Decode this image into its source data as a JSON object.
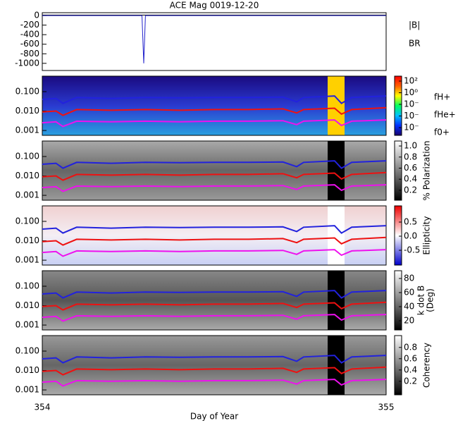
{
  "chart_data": [
    {
      "type": "line",
      "title": "ACE Mag 0019-12-20",
      "xlim": [
        354,
        355
      ],
      "ylim": [
        -1150,
        60
      ],
      "yticks": [
        0,
        -200,
        -400,
        -600,
        -800,
        -1000
      ],
      "x": [
        354,
        354.29,
        354.295,
        354.3,
        355
      ],
      "series": [
        {
          "name": "|B|",
          "color": "#000000",
          "values": [
            10,
            10,
            10,
            10,
            10
          ]
        },
        {
          "name": "BR",
          "color": "#2222cc",
          "values": [
            0,
            0,
            -1000,
            0,
            0
          ]
        }
      ]
    },
    {
      "type": "spectrogram",
      "log_y": true,
      "xlim": [
        354,
        355
      ],
      "ylim": [
        0.00056,
        0.63
      ],
      "yticks": [
        {
          "value": 0.1,
          "label": "0.100"
        },
        {
          "value": 0.01,
          "label": "0.010"
        },
        {
          "value": 0.001,
          "label": "0.001"
        }
      ],
      "background": [
        "#1a0a80",
        "#2a3ad0",
        "#2aa0e0"
      ],
      "colorbar": {
        "lim": [
          -7.33,
          2.85
        ],
        "ticks": [
          {
            "value": 2,
            "label": "10²"
          },
          {
            "value": 0,
            "label": "10⁰"
          },
          {
            "value": -2,
            "label": "10⁻"
          },
          {
            "value": -4,
            "label": "10⁻"
          },
          {
            "value": -6,
            "label": "10⁻"
          }
        ],
        "colors": [
          "#1a006a",
          "#0030ff",
          "#00c0ff",
          "#00ff60",
          "#ffff00",
          "#ff6000",
          "#ff0000"
        ]
      },
      "x": [
        354,
        354.04,
        354.06,
        354.1,
        354.2,
        354.3,
        354.4,
        354.5,
        354.6,
        354.7,
        354.74,
        354.76,
        354.85,
        354.87,
        354.9,
        355
      ],
      "series": [
        {
          "name": "fH+",
          "color": "#2222dd",
          "values": [
            0.04,
            0.045,
            0.025,
            0.05,
            0.045,
            0.05,
            0.048,
            0.05,
            0.05,
            0.052,
            0.03,
            0.05,
            0.06,
            0.025,
            0.05,
            0.06
          ]
        },
        {
          "name": "fHe+",
          "color": "#ee1111",
          "values": [
            0.009,
            0.01,
            0.006,
            0.012,
            0.011,
            0.012,
            0.011,
            0.012,
            0.012,
            0.013,
            0.008,
            0.012,
            0.014,
            0.007,
            0.012,
            0.015
          ]
        },
        {
          "name": "f0+",
          "color": "#ee11ee",
          "values": [
            0.0025,
            0.0028,
            0.0016,
            0.003,
            0.0028,
            0.003,
            0.0028,
            0.003,
            0.003,
            0.0032,
            0.002,
            0.003,
            0.0035,
            0.0018,
            0.003,
            0.0035
          ]
        }
      ]
    },
    {
      "type": "spectrogram",
      "log_y": true,
      "xlim": [
        354,
        355
      ],
      "ylim": [
        0.00056,
        0.63
      ],
      "yticks": [
        {
          "value": 0.1,
          "label": "0.100"
        },
        {
          "value": 0.01,
          "label": "0.010"
        },
        {
          "value": 0.001,
          "label": "0.001"
        }
      ],
      "background": [
        "#aaaaaa",
        "#666666",
        "#999999"
      ],
      "colorbar": {
        "label": "% Polarization",
        "lim": [
          0.02,
          1.09
        ],
        "ticks": [
          0.2,
          0.4,
          0.6,
          0.8,
          {
            "value": 1,
            "label": "1.0"
          }
        ],
        "colors": [
          "#000000",
          "#ffffff"
        ]
      },
      "x": [
        354,
        354.04,
        354.06,
        354.1,
        354.2,
        354.3,
        354.4,
        354.5,
        354.6,
        354.7,
        354.74,
        354.76,
        354.85,
        354.87,
        354.9,
        355
      ],
      "series": [
        {
          "color": "#2222dd",
          "values": [
            0.04,
            0.045,
            0.025,
            0.05,
            0.045,
            0.05,
            0.048,
            0.05,
            0.05,
            0.052,
            0.03,
            0.05,
            0.06,
            0.025,
            0.05,
            0.06
          ]
        },
        {
          "color": "#ee1111",
          "values": [
            0.009,
            0.01,
            0.006,
            0.012,
            0.011,
            0.012,
            0.011,
            0.012,
            0.012,
            0.013,
            0.008,
            0.012,
            0.014,
            0.007,
            0.012,
            0.015
          ]
        },
        {
          "color": "#ee11ee",
          "values": [
            0.0025,
            0.0028,
            0.0016,
            0.003,
            0.0028,
            0.003,
            0.0028,
            0.003,
            0.003,
            0.0032,
            0.002,
            0.003,
            0.0035,
            0.0018,
            0.003,
            0.0035
          ]
        }
      ]
    },
    {
      "type": "spectrogram",
      "log_y": true,
      "xlim": [
        354,
        355
      ],
      "ylim": [
        0.00056,
        0.63
      ],
      "yticks": [
        {
          "value": 0.1,
          "label": "0.100"
        },
        {
          "value": 0.01,
          "label": "0.010"
        },
        {
          "value": 0.001,
          "label": "0.001"
        }
      ],
      "background": [
        "#f0d0d0",
        "#f4eef4",
        "#c8d0f4"
      ],
      "colorbar": {
        "label": "Ellipticity",
        "lim": [
          -1.025,
          1.075
        ],
        "ticks": [
          {
            "value": -0.5,
            "label": "-0.5"
          },
          {
            "value": 0,
            "label": "0.0"
          },
          0.5
        ],
        "colors": [
          "#0000cc",
          "#ffffff",
          "#ee0000"
        ]
      },
      "x": [
        354,
        354.04,
        354.06,
        354.1,
        354.2,
        354.3,
        354.4,
        354.5,
        354.6,
        354.7,
        354.74,
        354.76,
        354.85,
        354.87,
        354.9,
        355
      ],
      "series": [
        {
          "color": "#2222dd",
          "values": [
            0.04,
            0.045,
            0.025,
            0.05,
            0.045,
            0.05,
            0.048,
            0.05,
            0.05,
            0.052,
            0.03,
            0.05,
            0.06,
            0.025,
            0.05,
            0.06
          ]
        },
        {
          "color": "#ee1111",
          "values": [
            0.009,
            0.01,
            0.006,
            0.012,
            0.011,
            0.012,
            0.011,
            0.012,
            0.012,
            0.013,
            0.008,
            0.012,
            0.014,
            0.007,
            0.012,
            0.015
          ]
        },
        {
          "color": "#ee11ee",
          "values": [
            0.0025,
            0.0028,
            0.0016,
            0.003,
            0.0028,
            0.003,
            0.0028,
            0.003,
            0.003,
            0.0032,
            0.002,
            0.003,
            0.0035,
            0.0018,
            0.003,
            0.0035
          ]
        }
      ]
    },
    {
      "type": "spectrogram",
      "log_y": true,
      "xlim": [
        354,
        355
      ],
      "ylim": [
        0.00056,
        0.63
      ],
      "yticks": [
        {
          "value": 0.1,
          "label": "0.100"
        },
        {
          "value": 0.01,
          "label": "0.010"
        },
        {
          "value": 0.001,
          "label": "0.001"
        }
      ],
      "background": [
        "#888888",
        "#555555",
        "#aaaaaa"
      ],
      "colorbar": {
        "label": "k dot B",
        "label2": "(Deg)",
        "lim": [
          7,
          91
        ],
        "ticks": [
          20,
          40,
          60,
          80
        ],
        "colors": [
          "#000000",
          "#ffffff"
        ]
      },
      "x": [
        354,
        354.04,
        354.06,
        354.1,
        354.2,
        354.3,
        354.4,
        354.5,
        354.6,
        354.7,
        354.74,
        354.76,
        354.85,
        354.87,
        354.9,
        355
      ],
      "series": [
        {
          "color": "#2222dd",
          "values": [
            0.04,
            0.045,
            0.025,
            0.05,
            0.045,
            0.05,
            0.048,
            0.05,
            0.05,
            0.052,
            0.03,
            0.05,
            0.06,
            0.025,
            0.05,
            0.06
          ]
        },
        {
          "color": "#ee1111",
          "values": [
            0.009,
            0.01,
            0.006,
            0.012,
            0.011,
            0.012,
            0.011,
            0.012,
            0.012,
            0.013,
            0.008,
            0.012,
            0.014,
            0.007,
            0.012,
            0.015
          ]
        },
        {
          "color": "#ee11ee",
          "values": [
            0.0025,
            0.0028,
            0.0016,
            0.003,
            0.0028,
            0.003,
            0.0028,
            0.003,
            0.003,
            0.0032,
            0.002,
            0.003,
            0.0035,
            0.0018,
            0.003,
            0.0035
          ]
        }
      ]
    },
    {
      "type": "spectrogram",
      "log_y": true,
      "xlim": [
        354,
        355
      ],
      "ylim": [
        0.00056,
        0.63
      ],
      "yticks": [
        {
          "value": 0.1,
          "label": "0.100"
        },
        {
          "value": 0.01,
          "label": "0.010"
        },
        {
          "value": 0.001,
          "label": "0.001"
        }
      ],
      "background": [
        "#999999",
        "#666666",
        "#aaaaaa"
      ],
      "colorbar": {
        "label": "Coherency",
        "lim": [
          -0.04,
          1.01
        ],
        "ticks": [
          0.2,
          0.4,
          0.6,
          0.8
        ],
        "colors": [
          "#000000",
          "#ffffff"
        ]
      },
      "xlabel": "Day of Year",
      "xticks": [
        354,
        355
      ],
      "x": [
        354,
        354.04,
        354.06,
        354.1,
        354.2,
        354.3,
        354.4,
        354.5,
        354.6,
        354.7,
        354.74,
        354.76,
        354.85,
        354.87,
        354.9,
        355
      ],
      "series": [
        {
          "color": "#2222dd",
          "values": [
            0.04,
            0.045,
            0.025,
            0.05,
            0.045,
            0.05,
            0.048,
            0.05,
            0.05,
            0.052,
            0.03,
            0.05,
            0.06,
            0.025,
            0.05,
            0.06
          ]
        },
        {
          "color": "#ee1111",
          "values": [
            0.009,
            0.01,
            0.006,
            0.012,
            0.011,
            0.012,
            0.011,
            0.012,
            0.012,
            0.013,
            0.008,
            0.012,
            0.014,
            0.007,
            0.012,
            0.015
          ]
        },
        {
          "color": "#ee11ee",
          "values": [
            0.0025,
            0.0028,
            0.0016,
            0.003,
            0.0028,
            0.003,
            0.0028,
            0.003,
            0.003,
            0.0032,
            0.002,
            0.003,
            0.0035,
            0.0018,
            0.003,
            0.0035
          ]
        }
      ]
    }
  ]
}
